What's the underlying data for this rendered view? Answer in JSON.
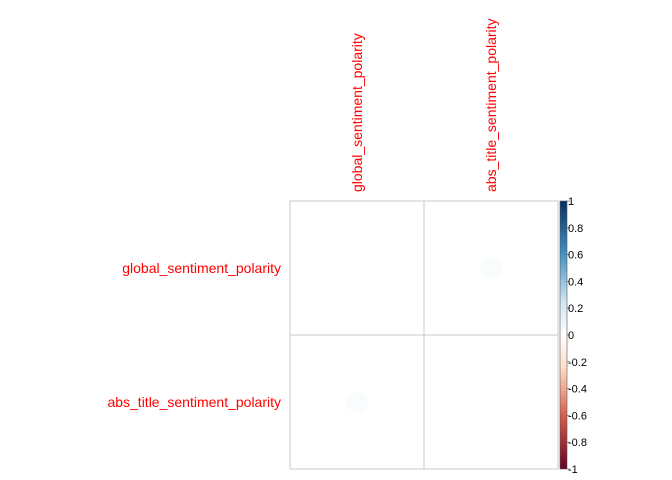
{
  "chart_data": {
    "type": "heatmap",
    "variables": [
      "global_sentiment_polarity",
      "abs_title_sentiment_polarity"
    ],
    "matrix": [
      [
        null,
        0.03
      ],
      [
        0.03,
        null
      ]
    ],
    "colorbar": {
      "range": [
        -1,
        1
      ],
      "ticks": [
        "1",
        "0.8",
        "0.6",
        "0.4",
        "0.2",
        "0",
        "-0.2",
        "-0.4",
        "-0.6",
        "-0.8",
        "-1"
      ],
      "colors": {
        "neg_strong": "#67001f",
        "neg_mid": "#d6604d",
        "neg_light": "#fddbc7",
        "zero": "#ffffff",
        "pos_light": "#d1e5f0",
        "pos_mid": "#4393c3",
        "pos_strong": "#053061"
      }
    },
    "label_color": "#ff0000",
    "grid_color": "#c8c8c8"
  }
}
